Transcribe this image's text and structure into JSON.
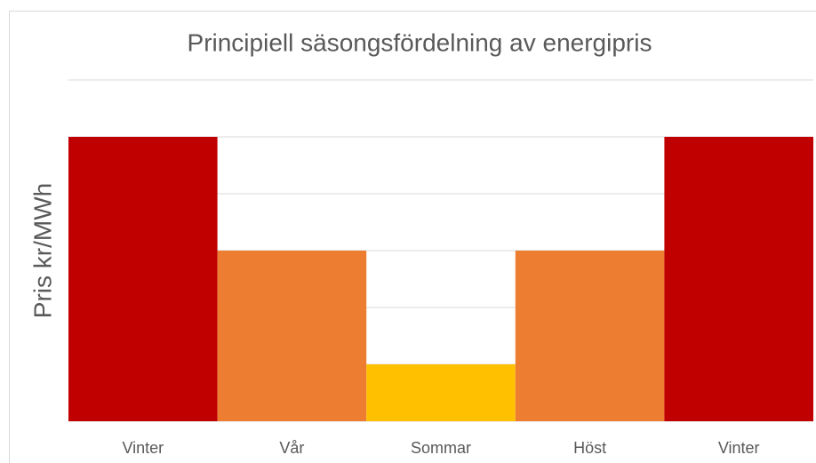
{
  "chart_data": {
    "type": "bar",
    "title": "Principiell säsongsfördelning av energipris",
    "y_label": "Pris kr/MWh",
    "categories": [
      "Vinter",
      "Vår",
      "Sommar",
      "Höst",
      "Vinter"
    ],
    "values": [
      5,
      3,
      1,
      3,
      5
    ],
    "colors": [
      "#c00000",
      "#ed7d31",
      "#ffc000",
      "#ed7d31",
      "#c00000"
    ],
    "ylim": [
      0,
      6
    ],
    "yticks": [
      0,
      1,
      2,
      3,
      4,
      5,
      6
    ],
    "grid": true,
    "tick_labels": false
  }
}
